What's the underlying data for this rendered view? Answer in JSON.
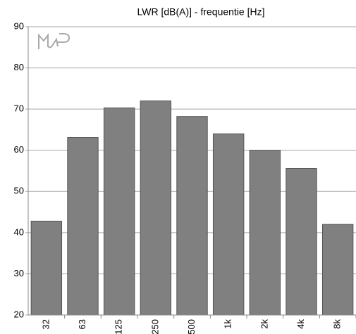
{
  "chart_data": {
    "type": "bar",
    "title": "LWR [dB(A)] - frequentie [Hz]",
    "categories": [
      "32",
      "63",
      "125",
      "250",
      "500",
      "1k",
      "2k",
      "4k",
      "8k"
    ],
    "values": [
      42.8,
      63.1,
      70.3,
      72,
      68.2,
      64,
      60,
      55.6,
      42
    ],
    "color": "#808080",
    "ylim": [
      20,
      90
    ],
    "yticks": [
      20,
      30,
      40,
      50,
      60,
      70,
      80,
      90
    ],
    "grid": true
  }
}
